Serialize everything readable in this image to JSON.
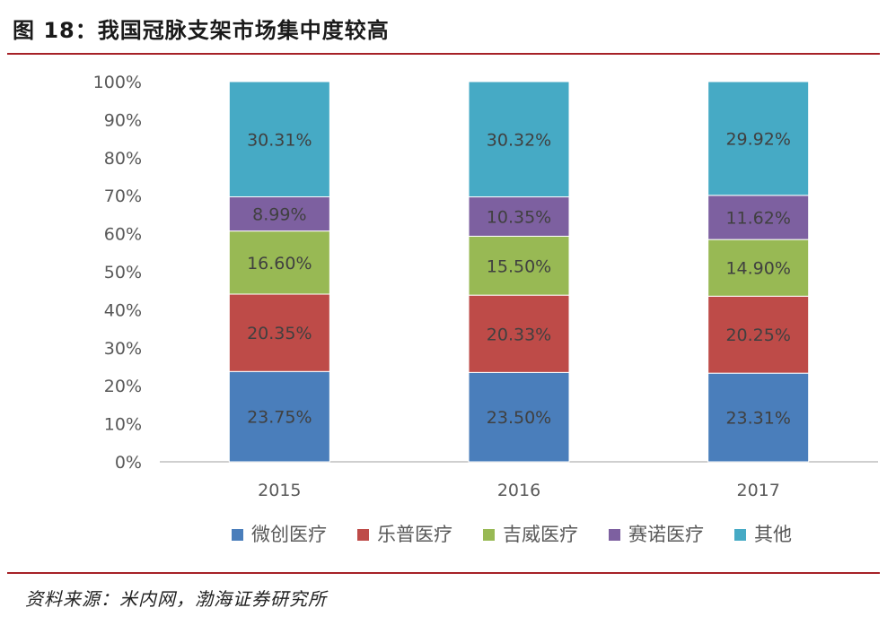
{
  "header": {
    "title": "图 18：我国冠脉支架市场集中度较高"
  },
  "footer": {
    "source": "资料来源：米内网，渤海证券研究所"
  },
  "colors": {
    "rule": "#a62127",
    "axis": "#bfbfbf",
    "text": "#595959",
    "label": "#404040"
  },
  "chart_data": {
    "type": "bar",
    "stacked": true,
    "percent": true,
    "title": "",
    "xlabel": "",
    "ylabel": "",
    "ylim": [
      0,
      100
    ],
    "yticks": [
      "0%",
      "10%",
      "20%",
      "30%",
      "40%",
      "50%",
      "60%",
      "70%",
      "80%",
      "90%",
      "100%"
    ],
    "categories": [
      "2015",
      "2016",
      "2017"
    ],
    "series": [
      {
        "name": "微创医疗",
        "color": "#4a7ebb",
        "values": [
          23.75,
          23.5,
          23.31
        ],
        "labels": [
          "23.75%",
          "23.50%",
          "23.31%"
        ]
      },
      {
        "name": "乐普医疗",
        "color": "#be4b48",
        "values": [
          20.35,
          20.33,
          20.25
        ],
        "labels": [
          "20.35%",
          "20.33%",
          "20.25%"
        ]
      },
      {
        "name": "吉威医疗",
        "color": "#98b954",
        "values": [
          16.6,
          15.5,
          14.9
        ],
        "labels": [
          "16.60%",
          "15.50%",
          "14.90%"
        ]
      },
      {
        "name": "赛诺医疗",
        "color": "#7d60a0",
        "values": [
          8.99,
          10.35,
          11.62
        ],
        "labels": [
          "8.99%",
          "10.35%",
          "11.62%"
        ]
      },
      {
        "name": "其他",
        "color": "#46aac5",
        "values": [
          30.31,
          30.32,
          29.92
        ],
        "labels": [
          "30.31%",
          "30.32%",
          "29.92%"
        ]
      }
    ],
    "legend_position": "bottom",
    "grid": false
  }
}
